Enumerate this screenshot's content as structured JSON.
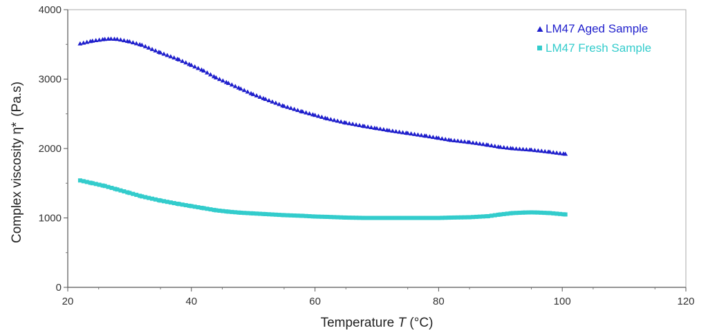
{
  "chart_data": {
    "type": "scatter",
    "xlabel_main": "Temperature ",
    "xlabel_symbol": "T",
    "xlabel_unit": " (°C)",
    "ylabel_main": "Complex viscosity ",
    "ylabel_symbol": "η*",
    "ylabel_unit": "(Pa.s)",
    "xlim": [
      20,
      120
    ],
    "ylim": [
      0,
      4000
    ],
    "x_ticks": [
      20,
      40,
      60,
      80,
      100,
      120
    ],
    "y_ticks": [
      0,
      1000,
      2000,
      3000,
      4000
    ],
    "grid": false,
    "legend_position": "top-right",
    "series": [
      {
        "name": "LM47 Aged Sample",
        "color": "#1f1fcc",
        "marker": "triangle",
        "x": [
          22,
          24,
          26,
          27,
          28,
          30,
          32,
          35,
          38,
          40,
          42,
          44,
          46,
          48,
          50,
          52,
          55,
          58,
          60,
          62,
          65,
          68,
          70,
          72,
          75,
          78,
          80,
          82,
          85,
          88,
          90,
          92,
          95,
          98,
          100.5
        ],
        "y": [
          3510,
          3550,
          3575,
          3580,
          3575,
          3540,
          3490,
          3380,
          3280,
          3200,
          3120,
          3020,
          2940,
          2860,
          2780,
          2710,
          2610,
          2530,
          2480,
          2430,
          2370,
          2320,
          2290,
          2260,
          2220,
          2180,
          2150,
          2120,
          2090,
          2050,
          2020,
          2000,
          1980,
          1950,
          1920
        ]
      },
      {
        "name": "LM47 Fresh Sample",
        "color": "#33cccc",
        "marker": "square",
        "x": [
          22,
          24,
          26,
          28,
          30,
          32,
          35,
          38,
          40,
          42,
          44,
          46,
          48,
          50,
          52,
          55,
          58,
          60,
          62,
          65,
          68,
          70,
          72,
          75,
          78,
          80,
          82,
          85,
          88,
          90,
          92,
          94,
          95,
          96,
          98,
          100.5
        ],
        "y": [
          1540,
          1500,
          1460,
          1410,
          1360,
          1310,
          1250,
          1200,
          1170,
          1140,
          1110,
          1090,
          1075,
          1065,
          1055,
          1040,
          1030,
          1020,
          1015,
          1005,
          1000,
          1000,
          1000,
          1000,
          1000,
          1000,
          1005,
          1010,
          1025,
          1050,
          1070,
          1078,
          1080,
          1078,
          1070,
          1050
        ]
      }
    ]
  }
}
